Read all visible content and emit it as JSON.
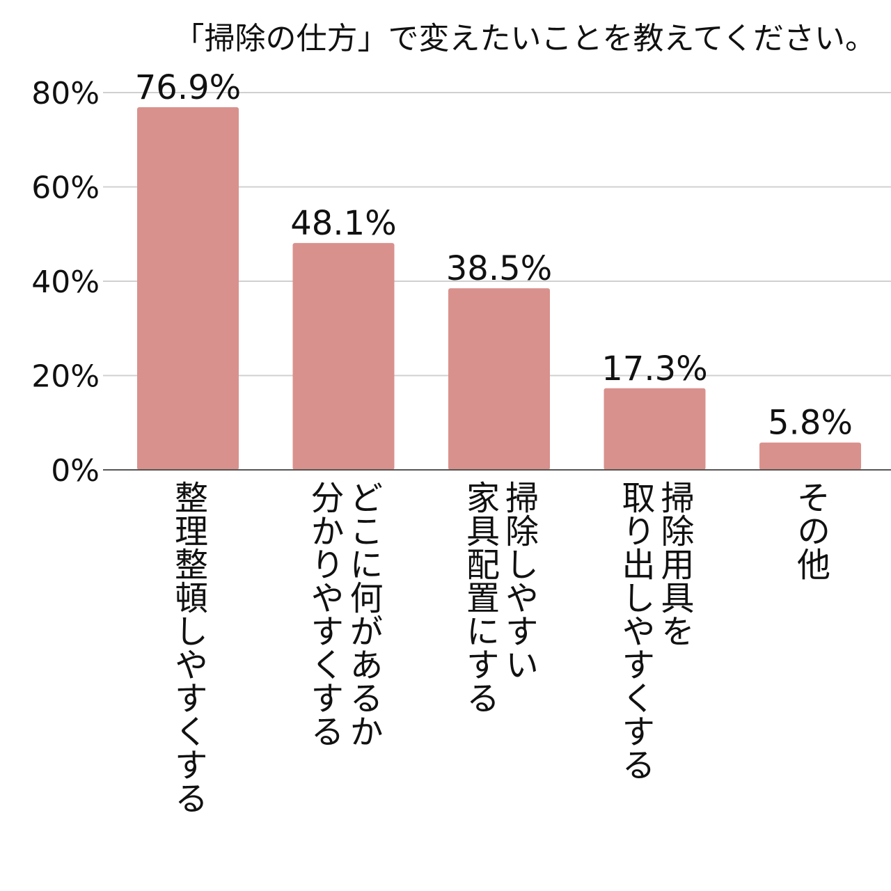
{
  "chart_data": {
    "type": "bar",
    "title": "「掃除の仕方」で変えたいことを教えてください。",
    "categories": [
      [
        "整理整頓しやすくする"
      ],
      [
        "どこに何があるか",
        "分かりやすくする"
      ],
      [
        "掃除しやすい",
        "家具配置にする"
      ],
      [
        "掃除用具を",
        "取り出しやすくする"
      ],
      [
        "その他"
      ]
    ],
    "values": [
      76.9,
      48.1,
      38.5,
      17.3,
      5.8
    ],
    "value_labels": [
      "76.9%",
      "48.1%",
      "38.5%",
      "17.3%",
      "5.8%"
    ],
    "y_ticks": [
      0,
      20,
      40,
      60,
      80
    ],
    "y_tick_labels": [
      "0%",
      "20%",
      "40%",
      "60%",
      "80%"
    ],
    "ylim": [
      0,
      80
    ],
    "xlabel": "",
    "ylabel": "",
    "grid": true,
    "legend": false,
    "colors": {
      "bar": "#d9918d",
      "grid": "#d0d0d0",
      "axis": "#555555"
    }
  }
}
